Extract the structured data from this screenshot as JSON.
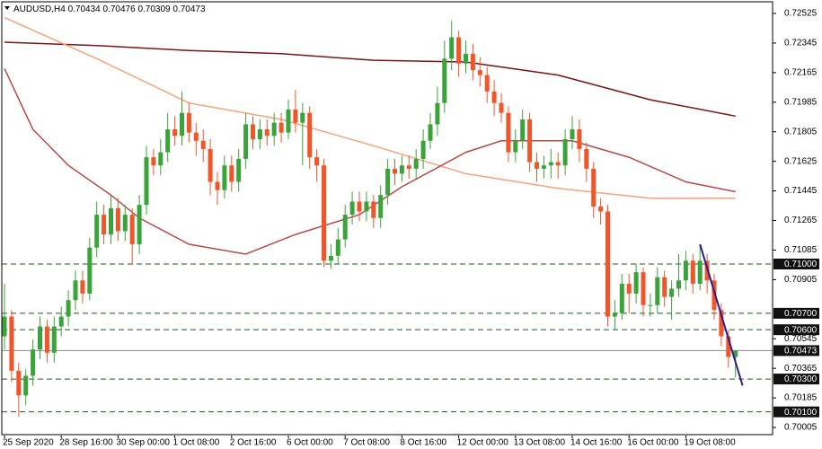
{
  "chart_data": {
    "type": "candlestick",
    "title": "AUDUSD,H4",
    "categories": [
      "25 Sep 2020",
      null,
      null,
      null,
      null,
      null,
      null,
      null,
      "28 Sep 16:00",
      null,
      null,
      null,
      null,
      null,
      null,
      null,
      "30 Sep 00:00",
      null,
      null,
      null,
      null,
      null,
      null,
      null,
      "1 Oct 08:00",
      null,
      null,
      null,
      null,
      null,
      null,
      null,
      "2 Oct 16:00",
      null,
      null,
      null,
      null,
      null,
      null,
      null,
      "6 Oct 00:00",
      null,
      null,
      null,
      null,
      null,
      null,
      null,
      "7 Oct 08:00",
      null,
      null,
      null,
      null,
      null,
      null,
      null,
      "8 Oct 16:00",
      null,
      null,
      null,
      null,
      null,
      null,
      null,
      "12 Oct 00:00",
      null,
      null,
      null,
      null,
      null,
      null,
      null,
      "13 Oct 08:00",
      null,
      null,
      null,
      null,
      null,
      null,
      null,
      "14 Oct 16:00",
      null,
      null,
      null,
      null,
      null,
      null,
      null,
      "16 Oct 00:00",
      null,
      null,
      null,
      null,
      null,
      null,
      null,
      "19 Oct 08:00",
      null,
      null,
      null,
      null,
      null,
      null,
      null
    ],
    "open": [
      0.7056,
      0.7068,
      0.7035,
      0.702,
      0.7032,
      0.7048,
      0.7062,
      0.7046,
      0.7062,
      0.7068,
      0.7078,
      0.709,
      0.7082,
      0.711,
      0.713,
      0.7118,
      0.7134,
      0.712,
      0.713,
      0.7112,
      0.7136,
      0.7165,
      0.716,
      0.7168,
      0.7182,
      0.7178,
      0.7192,
      0.718,
      0.7175,
      0.717,
      0.715,
      0.7145,
      0.716,
      0.715,
      0.7164,
      0.7185,
      0.7176,
      0.7182,
      0.7178,
      0.7186,
      0.718,
      0.7194,
      0.7186,
      0.7192,
      0.7165,
      0.716,
      0.7102,
      0.7105,
      0.7115,
      0.713,
      0.7138,
      0.7132,
      0.7138,
      0.7128,
      0.7142,
      0.7158,
      0.7155,
      0.716,
      0.7158,
      0.7164,
      0.7175,
      0.7185,
      0.7198,
      0.7225,
      0.7238,
      0.7222,
      0.7228,
      0.7218,
      0.7215,
      0.7205,
      0.7198,
      0.7192,
      0.7168,
      0.7175,
      0.7188,
      0.7162,
      0.7158,
      0.716,
      0.7162,
      0.716,
      0.7176,
      0.7182,
      0.717,
      0.7158,
      0.7135,
      0.7132,
      0.7068,
      0.707,
      0.7088,
      0.7082,
      0.7095,
      0.7075,
      0.7075,
      0.7092,
      0.708,
      0.7085,
      0.709,
      0.7102,
      0.7088,
      0.7102,
      0.709,
      0.7072,
      0.7056,
      0.70434
    ],
    "high": [
      0.7088,
      0.7072,
      0.704,
      0.7036,
      0.7054,
      0.7068,
      0.7066,
      0.7068,
      0.7074,
      0.7084,
      0.7096,
      0.7096,
      0.7116,
      0.7138,
      0.7136,
      0.7142,
      0.714,
      0.7136,
      0.7134,
      0.7142,
      0.7172,
      0.717,
      0.7176,
      0.7192,
      0.719,
      0.7205,
      0.7198,
      0.7186,
      0.7182,
      0.7176,
      0.7156,
      0.7166,
      0.7166,
      0.717,
      0.7192,
      0.719,
      0.7188,
      0.7188,
      0.7192,
      0.7192,
      0.72,
      0.7206,
      0.7198,
      0.7196,
      0.717,
      0.7164,
      0.7112,
      0.7122,
      0.7136,
      0.7144,
      0.7144,
      0.7144,
      0.7142,
      0.7148,
      0.7164,
      0.7164,
      0.7166,
      0.7166,
      0.717,
      0.7182,
      0.7192,
      0.7208,
      0.7236,
      0.7248,
      0.7242,
      0.7236,
      0.7234,
      0.7226,
      0.722,
      0.7212,
      0.7204,
      0.7196,
      0.7182,
      0.7194,
      0.7192,
      0.7168,
      0.7166,
      0.717,
      0.7168,
      0.7182,
      0.719,
      0.7188,
      0.7174,
      0.7162,
      0.714,
      0.7136,
      0.7078,
      0.7094,
      0.7094,
      0.71,
      0.7098,
      0.7082,
      0.7098,
      0.7096,
      0.709,
      0.7106,
      0.7108,
      0.7106,
      0.7112,
      0.7106,
      0.7094,
      0.7076,
      0.706,
      0.70476
    ],
    "low": [
      0.7048,
      0.7028,
      0.7007,
      0.7014,
      0.7026,
      0.7042,
      0.704,
      0.704,
      0.7056,
      0.7062,
      0.7072,
      0.7076,
      0.7078,
      0.7104,
      0.7112,
      0.7112,
      0.7114,
      0.7114,
      0.71,
      0.7106,
      0.713,
      0.7154,
      0.7154,
      0.7162,
      0.7172,
      0.7172,
      0.7174,
      0.7166,
      0.7162,
      0.7142,
      0.7136,
      0.714,
      0.7144,
      0.7144,
      0.7158,
      0.717,
      0.717,
      0.7172,
      0.7172,
      0.7174,
      0.7176,
      0.718,
      0.716,
      0.7158,
      0.715,
      0.7098,
      0.7097,
      0.71,
      0.711,
      0.7124,
      0.7126,
      0.7126,
      0.7122,
      0.7122,
      0.7136,
      0.7148,
      0.715,
      0.7152,
      0.7152,
      0.7158,
      0.717,
      0.7178,
      0.7192,
      0.7218,
      0.7214,
      0.7216,
      0.7212,
      0.7208,
      0.7198,
      0.719,
      0.7186,
      0.7162,
      0.7162,
      0.717,
      0.7156,
      0.715,
      0.7152,
      0.7152,
      0.7152,
      0.7154,
      0.717,
      0.7162,
      0.715,
      0.7128,
      0.7124,
      0.7062,
      0.706,
      0.7066,
      0.707,
      0.7076,
      0.7068,
      0.7068,
      0.707,
      0.7074,
      0.7066,
      0.708,
      0.7084,
      0.7082,
      0.7084,
      0.7082,
      0.7066,
      0.705,
      0.7037,
      0.70309
    ],
    "close": [
      0.7068,
      0.7035,
      0.702,
      0.7032,
      0.7048,
      0.7062,
      0.7046,
      0.7062,
      0.7068,
      0.7078,
      0.709,
      0.7082,
      0.711,
      0.713,
      0.7118,
      0.7134,
      0.712,
      0.713,
      0.7112,
      0.7136,
      0.7165,
      0.716,
      0.7168,
      0.7182,
      0.7178,
      0.7192,
      0.718,
      0.7175,
      0.717,
      0.715,
      0.7145,
      0.716,
      0.715,
      0.7164,
      0.7185,
      0.7176,
      0.7182,
      0.7178,
      0.7186,
      0.718,
      0.7194,
      0.7186,
      0.7192,
      0.7165,
      0.716,
      0.7102,
      0.7105,
      0.7115,
      0.713,
      0.7138,
      0.7132,
      0.7138,
      0.7128,
      0.7142,
      0.7158,
      0.7155,
      0.716,
      0.7158,
      0.7164,
      0.7175,
      0.7185,
      0.7198,
      0.7225,
      0.7238,
      0.7222,
      0.7228,
      0.7218,
      0.7215,
      0.7205,
      0.7198,
      0.7192,
      0.7168,
      0.7175,
      0.7188,
      0.7162,
      0.7158,
      0.716,
      0.7162,
      0.716,
      0.7176,
      0.7182,
      0.717,
      0.7158,
      0.7135,
      0.7132,
      0.7068,
      0.707,
      0.7088,
      0.7082,
      0.7095,
      0.7075,
      0.7075,
      0.7092,
      0.708,
      0.7085,
      0.709,
      0.7102,
      0.7088,
      0.7102,
      0.709,
      0.7072,
      0.7056,
      0.70434,
      0.70473
    ],
    "up_color": "#3aa33a",
    "down_color": "#f0562a",
    "lines": [
      {
        "color": "#7a1515",
        "x": [
          0,
          13,
          26,
          39,
          52,
          65,
          78,
          91,
          103
        ],
        "values": [
          0.7235,
          0.7233,
          0.723,
          0.7228,
          0.7224,
          0.7223,
          0.7215,
          0.72,
          0.719
        ]
      },
      {
        "color": "#f7a27a",
        "x": [
          0,
          13,
          26,
          39,
          52,
          65,
          78,
          91,
          103
        ],
        "values": [
          0.725,
          0.7225,
          0.7198,
          0.7188,
          0.7172,
          0.7155,
          0.7146,
          0.714,
          0.714
        ]
      },
      {
        "color": "#b84a46",
        "x": [
          0,
          4,
          9,
          15,
          19,
          26,
          34,
          41,
          50,
          56,
          65,
          70,
          80,
          88,
          96,
          103
        ],
        "values": [
          0.7219,
          0.7182,
          0.716,
          0.7142,
          0.7128,
          0.7112,
          0.7106,
          0.7118,
          0.713,
          0.7147,
          0.7168,
          0.7175,
          0.7175,
          0.7165,
          0.715,
          0.7144
        ]
      }
    ],
    "trendline": {
      "color": "#2e1a8a",
      "x": [
        98,
        104
      ],
      "values": [
        0.7112,
        0.7026
      ]
    },
    "levels": [
      {
        "value": 0.71,
        "label": "0.71000"
      },
      {
        "value": 0.707,
        "label": "0.70700"
      },
      {
        "value": 0.706,
        "label": "0.70600"
      },
      {
        "value": 0.703,
        "label": "0.70300"
      },
      {
        "value": 0.701,
        "label": "0.70100"
      }
    ],
    "level_color": "#1f5a1f",
    "ylim": [
      0.69956,
      0.72607
    ],
    "yticks": [
      0.72525,
      0.72345,
      0.72165,
      0.71985,
      0.71805,
      0.71625,
      0.71445,
      0.71265,
      0.71085,
      0.70905,
      0.70545,
      0.70365,
      0.70185,
      0.70005
    ]
  }
}
